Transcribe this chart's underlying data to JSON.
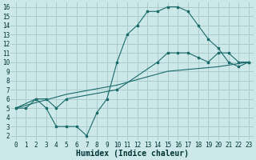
{
  "xlabel": "Humidex (Indice chaleur)",
  "bg_color": "#cce8e8",
  "grid_color": "#aacccc",
  "line_color": "#1a6b6b",
  "xlim": [
    -0.5,
    23.5
  ],
  "ylim": [
    1.5,
    16.5
  ],
  "xticks": [
    0,
    1,
    2,
    3,
    4,
    5,
    6,
    7,
    8,
    9,
    10,
    11,
    12,
    13,
    14,
    15,
    16,
    17,
    18,
    19,
    20,
    21,
    22,
    23
  ],
  "yticks": [
    2,
    3,
    4,
    5,
    6,
    7,
    8,
    9,
    10,
    11,
    12,
    13,
    14,
    15,
    16
  ],
  "curve1_x": [
    0,
    1,
    2,
    3,
    4,
    5,
    6,
    7,
    8,
    9,
    10,
    11,
    12,
    13,
    14,
    15,
    16,
    17,
    18,
    19,
    20,
    21,
    22,
    23
  ],
  "curve1_y": [
    5,
    5,
    6,
    5,
    3,
    3,
    3,
    2,
    4.5,
    6,
    10,
    13,
    14,
    15.5,
    15.5,
    16,
    16,
    15.5,
    14,
    12.5,
    11.5,
    10,
    9.5,
    10
  ],
  "curve2_x": [
    0,
    2,
    3,
    4,
    5,
    10,
    14,
    15,
    16,
    17,
    18,
    19,
    20,
    21,
    22,
    23
  ],
  "curve2_y": [
    5,
    6,
    6,
    5,
    6,
    7,
    10,
    11,
    11,
    11,
    10.5,
    10,
    11,
    11,
    10,
    10
  ],
  "curve3_x": [
    0,
    5,
    10,
    15,
    20,
    23
  ],
  "curve3_y": [
    5,
    6.5,
    7.5,
    9,
    9.5,
    10
  ],
  "tick_fontsize": 5.5,
  "xlabel_fontsize": 7
}
